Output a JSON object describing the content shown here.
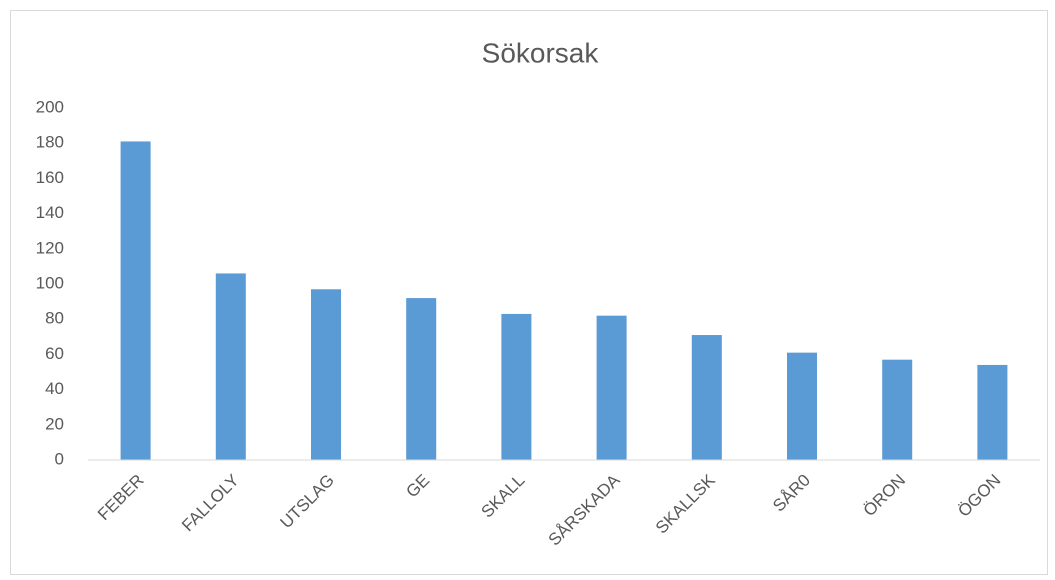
{
  "chart_data": {
    "type": "bar",
    "title": "Sökorsak",
    "categories": [
      "FEBER",
      "FALLOLY",
      "UTSLAG",
      "GE",
      "SKALL",
      "SÅRSKADA",
      "SKALLSK",
      "SÅR0",
      "ÖRON",
      "ÖGON"
    ],
    "values": [
      181,
      106,
      97,
      92,
      83,
      82,
      71,
      61,
      57,
      54
    ],
    "color": "#5b9bd5",
    "ylim": [
      0,
      200
    ],
    "yticks": [
      0,
      20,
      40,
      60,
      80,
      100,
      120,
      140,
      160,
      180,
      200
    ],
    "grid": false
  }
}
